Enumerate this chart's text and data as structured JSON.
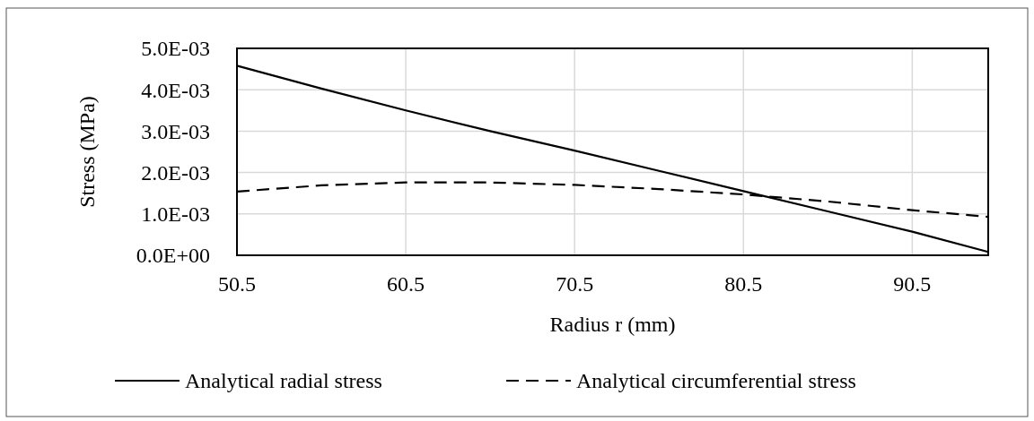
{
  "chart_data": {
    "type": "line",
    "xlabel": "Radius r (mm)",
    "ylabel": "Stress (MPa)",
    "xlim": [
      50.5,
      95
    ],
    "xticks": [
      50.5,
      60.5,
      70.5,
      80.5,
      90.5
    ],
    "ylim": [
      0,
      0.005
    ],
    "yticks": [
      {
        "value": 0,
        "label": "0.0E+00"
      },
      {
        "value": 0.001,
        "label": "1.0E-03"
      },
      {
        "value": 0.002,
        "label": "2.0E-03"
      },
      {
        "value": 0.003,
        "label": "3.0E-03"
      },
      {
        "value": 0.004,
        "label": "4.0E-03"
      },
      {
        "value": 0.005,
        "label": "5.0E-03"
      }
    ],
    "grid": true,
    "legend": "bottom",
    "marker": "none",
    "series": [
      {
        "name": "Analytical radial stress",
        "color": "#000000",
        "line_style": "solid",
        "x": [
          50.5,
          55.5,
          60.5,
          65.5,
          70.5,
          75.5,
          80.5,
          85.5,
          90.5,
          95
        ],
        "values": [
          0.00458,
          0.00403,
          0.0035,
          0.003,
          0.00253,
          0.00204,
          0.00155,
          0.00106,
          0.00057,
          8e-05
        ]
      },
      {
        "name": "Analytical circumferential stress",
        "color": "#000000",
        "line_style": "dashed",
        "x": [
          50.5,
          55.5,
          60.5,
          65.5,
          70.5,
          75.5,
          80.5,
          85.5,
          90.5,
          95
        ],
        "values": [
          0.00154,
          0.00169,
          0.00176,
          0.00176,
          0.0017,
          0.0016,
          0.00147,
          0.0013,
          0.00109,
          0.00093
        ]
      }
    ]
  }
}
